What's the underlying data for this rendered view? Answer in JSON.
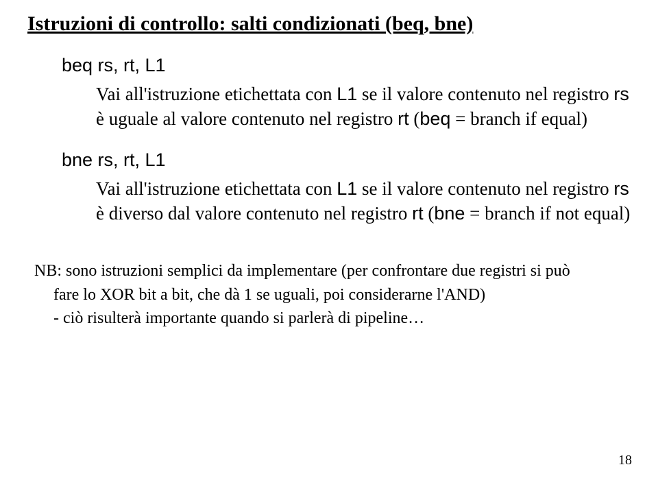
{
  "title": "Istruzioni di controllo: salti condizionati (beq, bne)",
  "block1": {
    "instr": "beq rs, rt, L1",
    "desc_pre": "Vai all'istruzione etichettata con ",
    "desc_L1": "L1",
    "desc_mid": " se il valore contenuto nel registro ",
    "desc_rs": "rs",
    "desc_mid2": " è uguale al valore contenuto nel registro ",
    "desc_rt": "rt",
    "desc_open": " (",
    "desc_beq": "beq",
    "desc_close": " = branch if equal)"
  },
  "block2": {
    "instr": "bne rs, rt, L1",
    "desc_pre": "Vai all'istruzione etichettata con ",
    "desc_L1": "L1",
    "desc_mid": " se il valore contenuto nel registro ",
    "desc_rs": "rs",
    "desc_mid2": " è diverso dal valore contenuto nel registro ",
    "desc_rt": "rt",
    "desc_open": " (",
    "desc_bne": "bne",
    "desc_close": " = branch if not equal)"
  },
  "nb": {
    "line1": "NB: sono istruzioni semplici da implementare (per confrontare due registri si può",
    "line2": "fare lo XOR bit a bit, che dà 1 se uguali, poi considerarne l'AND)",
    "line3": "- ciò risulterà importante quando si parlerà di pipeline…"
  },
  "pagenum": "18"
}
